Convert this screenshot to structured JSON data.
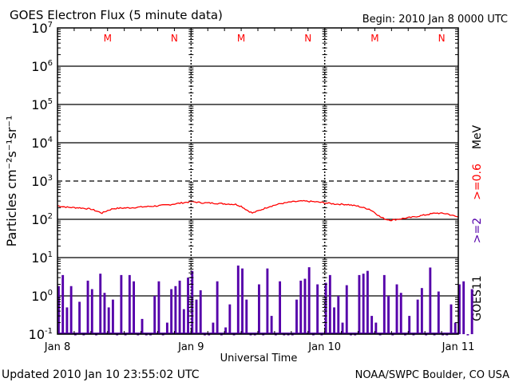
{
  "header": {
    "title": "GOES Electron Flux (5 minute data)",
    "begin": "Begin: 2010 Jan 8 0000 UTC"
  },
  "footer": {
    "updated": "Updated 2010 Jan 10 23:55:02 UTC",
    "source": "NOAA/SWPC Boulder, CO USA"
  },
  "colors": {
    "series1": "#ff0000",
    "series2": "#5500aa",
    "markers": "#ff0000"
  },
  "chart_data": {
    "type": "line",
    "title": "GOES Electron Flux (5 minute data)",
    "xlabel": "Universal Time",
    "ylabel": "Particles cm⁻²s⁻¹sr⁻¹",
    "yscale": "log",
    "ylim": [
      0.1,
      10000000
    ],
    "xlim_hours": [
      0,
      72
    ],
    "y_ticks": [
      {
        "exp": "-1",
        "value": 0.1
      },
      {
        "exp": "0",
        "value": 1
      },
      {
        "exp": "1",
        "value": 10
      },
      {
        "exp": "2",
        "value": 100
      },
      {
        "exp": "3",
        "value": 1000
      },
      {
        "exp": "4",
        "value": 10000
      },
      {
        "exp": "5",
        "value": 100000
      },
      {
        "exp": "6",
        "value": 1000000
      },
      {
        "exp": "7",
        "value": 10000000
      }
    ],
    "y_tick_base": "10",
    "x_ticks": [
      {
        "label": "Jan 8",
        "hour": 0
      },
      {
        "label": "Jan 9",
        "hour": 24
      },
      {
        "label": "Jan 10",
        "hour": 48
      },
      {
        "label": "Jan 11",
        "hour": 72
      }
    ],
    "markers": [
      {
        "label": "M",
        "hour": 9
      },
      {
        "label": "N",
        "hour": 21
      },
      {
        "label": "M",
        "hour": 33
      },
      {
        "label": "N",
        "hour": 45
      },
      {
        "label": "M",
        "hour": 57
      },
      {
        "label": "N",
        "hour": 69
      }
    ],
    "right_labels": {
      "unit": "MeV",
      "series1": ">=0.6",
      "series2": ">=2",
      "satellite": "GOES11"
    },
    "threshold": 1000,
    "series": [
      {
        "name": ">=0.6 MeV",
        "hours": [
          0,
          2,
          4,
          6,
          7,
          8,
          9,
          10,
          11,
          13,
          15,
          18,
          20,
          22,
          24,
          26,
          28,
          30,
          32,
          33,
          34,
          35,
          36,
          38,
          40,
          42,
          44,
          46,
          48,
          50,
          52,
          54,
          55,
          56,
          57,
          58,
          59,
          60,
          61,
          62,
          64,
          66,
          68,
          70,
          71,
          72
        ],
        "values": [
          225,
          205,
          200,
          185,
          165,
          146,
          170,
          190,
          195,
          200,
          210,
          225,
          240,
          265,
          290,
          270,
          265,
          255,
          245,
          220,
          175,
          146,
          165,
          215,
          255,
          285,
          300,
          290,
          270,
          250,
          245,
          220,
          200,
          185,
          150,
          115,
          100,
          95,
          100,
          105,
          115,
          130,
          146,
          140,
          125,
          115
        ]
      },
      {
        "name": ">=2 MeV",
        "step_hours": 0.75,
        "values": [
          1.8,
          3.5,
          0.5,
          1.8,
          0.1,
          0.7,
          0.1,
          2.5,
          1.5,
          0.1,
          3.8,
          1.2,
          0.5,
          0.8,
          0.1,
          3.5,
          0.1,
          3.5,
          2.4,
          0.1,
          0.25,
          0.1,
          0.1,
          1.0,
          2.4,
          0.1,
          0.2,
          1.5,
          1.8,
          2.5,
          0.45,
          3.0,
          4.5,
          0.8,
          1.4,
          0.1,
          0.1,
          0.2,
          2.4,
          0.1,
          0.15,
          0.6,
          0.1,
          6.2,
          5.2,
          0.8,
          0.1,
          0.1,
          2.0,
          0.1,
          5.2,
          0.3,
          0.1,
          2.4,
          0.1,
          0.1,
          0.1,
          0.8,
          2.5,
          2.8,
          5.6,
          0.1,
          2.0,
          0.1,
          2.2,
          3.5,
          0.5,
          1.0,
          0.2,
          1.9,
          0.1,
          0.1,
          3.5,
          3.8,
          4.5,
          0.3,
          0.2,
          0.1,
          3.5,
          1.0,
          0.1,
          2.0,
          1.2,
          0.1,
          0.3,
          0.1,
          0.8,
          1.6,
          0.1,
          5.5,
          0.1,
          1.3,
          0.1,
          0.1,
          0.6,
          0.2,
          2.0,
          2.4,
          0.1,
          1.5
        ]
      }
    ]
  }
}
